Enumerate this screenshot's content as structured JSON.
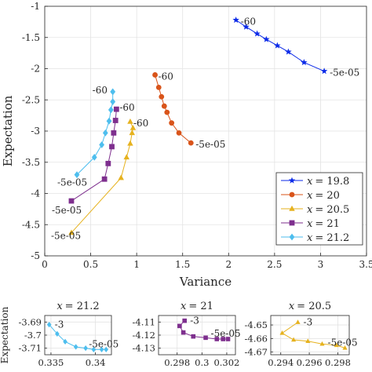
{
  "colors": {
    "x19_8": "#0b2ae8",
    "x20": "#d9541a",
    "x20_5": "#e6b21e",
    "x21": "#7e2f8e",
    "x21_2": "#4dbeee",
    "grid": "#e3e3e3",
    "axis": "#262626"
  },
  "chart_data": [
    {
      "id": "main",
      "type": "line",
      "title": "",
      "xlabel": "Variance",
      "ylabel": "Expectation",
      "xlim": [
        0,
        3.5
      ],
      "ylim": [
        -5,
        -1
      ],
      "xticks": [
        0,
        0.5,
        1,
        1.5,
        2,
        2.5,
        3,
        3.5
      ],
      "xtick_labels": [
        "0",
        "0.5",
        "1",
        "1.5",
        "2",
        "2.5",
        "3",
        "3.5"
      ],
      "yticks": [
        -5,
        -4.5,
        -4,
        -3.5,
        -3,
        -2.5,
        -2,
        -1.5,
        -1
      ],
      "ytick_labels": [
        "-5",
        "-4.5",
        "-4",
        "-3.5",
        "-3",
        "-2.5",
        "-2",
        "-1.5",
        "-1"
      ],
      "grid": true,
      "legend_position": "bottom-right",
      "series": [
        {
          "name": "x = 19.8",
          "legend_label": "= 19.8",
          "marker": "star",
          "color_key": "x19_8",
          "x": [
            2.08,
            2.19,
            2.31,
            2.41,
            2.53,
            2.65,
            2.82,
            3.04
          ],
          "y": [
            -1.22,
            -1.33,
            -1.44,
            -1.53,
            -1.63,
            -1.73,
            -1.9,
            -2.04
          ],
          "start_label": "-60",
          "end_label": "-5e-05"
        },
        {
          "name": "x = 20",
          "legend_label": "= 20",
          "marker": "circle",
          "color_key": "x20",
          "x": [
            1.2,
            1.24,
            1.27,
            1.3,
            1.33,
            1.38,
            1.46,
            1.59
          ],
          "y": [
            -2.1,
            -2.3,
            -2.45,
            -2.6,
            -2.7,
            -2.87,
            -3.03,
            -3.19
          ],
          "start_label": "-60",
          "end_label": "-5e-05"
        },
        {
          "name": "x = 20.5",
          "legend_label": "= 20.5",
          "marker": "triangle",
          "color_key": "x20_5",
          "x": [
            0.93,
            0.96,
            0.95,
            0.93,
            0.89,
            0.83,
            0.29
          ],
          "y": [
            -2.85,
            -2.95,
            -3.03,
            -3.2,
            -3.42,
            -3.75,
            -4.63
          ],
          "start_label": "-60",
          "end_label": "-5e-05"
        },
        {
          "name": "x = 21",
          "legend_label": "= 21",
          "marker": "square",
          "color_key": "x21",
          "x": [
            0.78,
            0.77,
            0.75,
            0.73,
            0.69,
            0.65,
            0.29
          ],
          "y": [
            -2.65,
            -2.83,
            -3.03,
            -3.25,
            -3.52,
            -3.77,
            -4.12
          ],
          "start_label": "-60",
          "end_label": "-5e-05"
        },
        {
          "name": "x = 21.2",
          "legend_label": "= 21.2",
          "marker": "diamond",
          "color_key": "x21_2",
          "x": [
            0.74,
            0.74,
            0.72,
            0.7,
            0.66,
            0.62,
            0.54,
            0.35
          ],
          "y": [
            -2.37,
            -2.53,
            -2.66,
            -2.84,
            -3.03,
            -3.22,
            -3.42,
            -3.7
          ],
          "start_label": "-60",
          "end_label": "-5e-05"
        }
      ]
    },
    {
      "id": "inset-1",
      "type": "line",
      "title": "x = 21.2",
      "title_value": "= 21.2",
      "ylabel": "Expectation",
      "xlim": [
        0.3343,
        0.3418
      ],
      "ylim": [
        -3.715,
        -3.685
      ],
      "xticks": [
        0.335,
        0.34
      ],
      "xtick_labels": [
        "0.335",
        "0.34"
      ],
      "yticks": [
        -3.69,
        -3.7,
        -3.71
      ],
      "ytick_labels": [
        "-3.69",
        "-3.7",
        "-3.71"
      ],
      "color_key": "x21_2",
      "marker": "diamond",
      "x": [
        0.3348,
        0.3357,
        0.3366,
        0.3378,
        0.3389,
        0.3398,
        0.3407,
        0.3412
      ],
      "y": [
        -3.692,
        -3.699,
        -3.705,
        -3.709,
        -3.71,
        -3.711,
        -3.711,
        -3.711
      ],
      "start_label": "-3",
      "end_label": "-5e-05"
    },
    {
      "id": "inset-2",
      "type": "line",
      "title": "x = 21",
      "title_value": "= 21",
      "ylabel": "",
      "xlim": [
        0.2965,
        0.3027
      ],
      "ylim": [
        -4.135,
        -4.105
      ],
      "xticks": [
        0.298,
        0.3,
        0.302
      ],
      "xtick_labels": [
        "0.298",
        "0.3",
        "0.302"
      ],
      "yticks": [
        -4.11,
        -4.12,
        -4.13
      ],
      "ytick_labels": [
        "-4.11",
        "-4.12",
        "-4.13"
      ],
      "color_key": "x21",
      "marker": "square",
      "x": [
        0.2986,
        0.2982,
        0.2985,
        0.2993,
        0.3003,
        0.3012,
        0.3017,
        0.3021
      ],
      "y": [
        -4.109,
        -4.113,
        -4.118,
        -4.121,
        -4.122,
        -4.123,
        -4.123,
        -4.123
      ],
      "start_label": "-3",
      "end_label": "-5e-05"
    },
    {
      "id": "inset-3",
      "type": "line",
      "title": "x = 20.5",
      "title_value": "= 20.5",
      "ylabel": "",
      "xlim": [
        0.2933,
        0.2988
      ],
      "ylim": [
        -4.672,
        -4.643
      ],
      "xticks": [
        0.294,
        0.296,
        0.298
      ],
      "xtick_labels": [
        "0.294",
        "0.296",
        "0.298"
      ],
      "yticks": [
        -4.65,
        -4.66,
        -4.67
      ],
      "ytick_labels": [
        "-4.65",
        "-4.66",
        "-4.67"
      ],
      "color_key": "x20_5",
      "marker": "triangle",
      "x": [
        0.2952,
        0.2941,
        0.2949,
        0.2959,
        0.2969,
        0.2979,
        0.2985
      ],
      "y": [
        -4.648,
        -4.656,
        -4.661,
        -4.662,
        -4.664,
        -4.665,
        -4.667
      ],
      "start_label": "-3",
      "end_label": "-5e-05"
    }
  ]
}
